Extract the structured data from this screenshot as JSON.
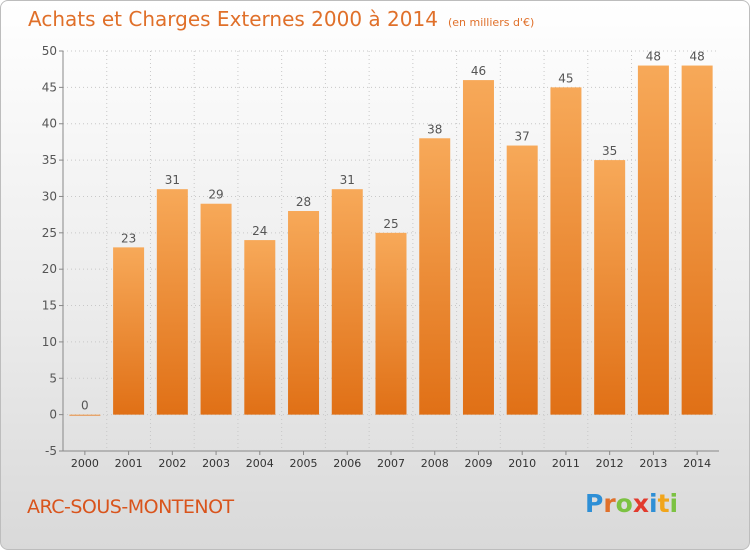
{
  "header": {
    "title": "Achats et Charges Externes 2000 à 2014",
    "subtitle": "(en milliers d'€)"
  },
  "footer": {
    "place": "ARC-SOUS-MONTENOT",
    "logo_letters": [
      "P",
      "r",
      "o",
      "x",
      "i",
      "t",
      "i"
    ],
    "logo_colors": [
      "#2e8fd6",
      "#e0702a",
      "#7cc242",
      "#e23b2e",
      "#2e8fd6",
      "#f1a51b",
      "#7cc242"
    ]
  },
  "colors": {
    "bar_light": "#f7a959",
    "bar_dark": "#e07016",
    "text": "#555555",
    "grid": "#c8c8c8"
  },
  "chart_data": {
    "type": "bar",
    "categories": [
      "2000",
      "2001",
      "2002",
      "2003",
      "2004",
      "2005",
      "2006",
      "2007",
      "2008",
      "2009",
      "2010",
      "2011",
      "2012",
      "2013",
      "2014"
    ],
    "values": [
      0,
      23,
      31,
      29,
      24,
      28,
      31,
      25,
      38,
      46,
      37,
      45,
      35,
      48,
      48
    ],
    "title": "Achats et Charges Externes 2000 à 2014",
    "subtitle": "(en milliers d'€)",
    "ylim": [
      -5,
      50
    ],
    "yticks": [
      -5,
      0,
      5,
      10,
      15,
      20,
      25,
      30,
      35,
      40,
      45,
      50
    ],
    "grid": true
  }
}
